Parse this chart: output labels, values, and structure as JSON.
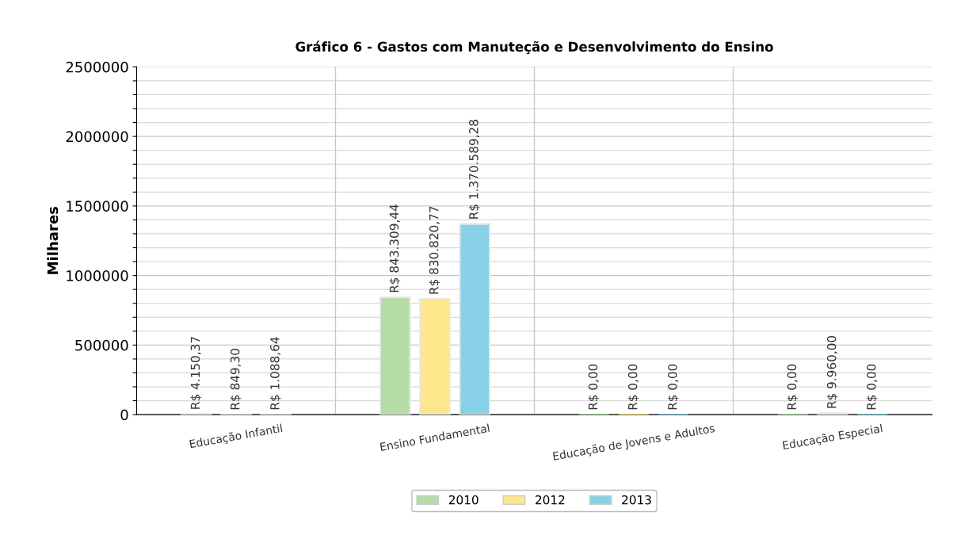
{
  "chart_data": {
    "type": "bar",
    "title": "Gráfico 6 - Gastos com Manuteção e Desenvolvimento do Ensino",
    "ylabel": "Milhares",
    "categories": [
      "Educação Infantil",
      "Ensino Fundamental",
      "Educação de Jovens e Adultos",
      "Educação Especial"
    ],
    "series": [
      {
        "name": "2010",
        "color": "#b3dca7",
        "values": [
          4150.37,
          843309.44,
          0,
          0
        ],
        "value_labels": [
          "R$ 4.150,37",
          "R$ 843.309,44",
          "R$ 0,00",
          "R$ 0,00"
        ]
      },
      {
        "name": "2012",
        "color": "#fde68b",
        "values": [
          849.3,
          830820.77,
          0,
          9960.0
        ],
        "value_labels": [
          "R$ 849,30",
          "R$ 830.820,77",
          "R$ 0,00",
          "R$ 9.960,00"
        ]
      },
      {
        "name": "2013",
        "color": "#87d0e6",
        "values": [
          1088.64,
          1370589.28,
          0,
          0
        ],
        "value_labels": [
          "R$ 1.088,64",
          "R$ 1.370.589,28",
          "R$ 0,00",
          "R$ 0,00"
        ]
      }
    ],
    "ylim": [
      0,
      2500000
    ],
    "yticks": [
      0,
      {
        "value": 100000,
        "label": null
      },
      {
        "value": 200000,
        "label": null
      },
      {
        "value": 300000,
        "label": null
      },
      {
        "value": 400000,
        "label": null
      },
      500000,
      {
        "value": 600000,
        "label": null
      },
      {
        "value": 700000,
        "label": null
      },
      {
        "value": 800000,
        "label": null
      },
      {
        "value": 900000,
        "label": null
      },
      1000000,
      {
        "value": 1100000,
        "label": null
      },
      {
        "value": 1200000,
        "label": null
      },
      {
        "value": 1300000,
        "label": null
      },
      {
        "value": 1400000,
        "label": null
      },
      1500000,
      {
        "value": 1600000,
        "label": null
      },
      {
        "value": 1700000,
        "label": null
      },
      {
        "value": 1800000,
        "label": null
      },
      {
        "value": 1900000,
        "label": null
      },
      2000000,
      {
        "value": 2100000,
        "label": null
      },
      {
        "value": 2200000,
        "label": null
      },
      {
        "value": 2300000,
        "label": null
      },
      {
        "value": 2400000,
        "label": null
      },
      2500000
    ],
    "grid": true,
    "legend": "bottom"
  }
}
